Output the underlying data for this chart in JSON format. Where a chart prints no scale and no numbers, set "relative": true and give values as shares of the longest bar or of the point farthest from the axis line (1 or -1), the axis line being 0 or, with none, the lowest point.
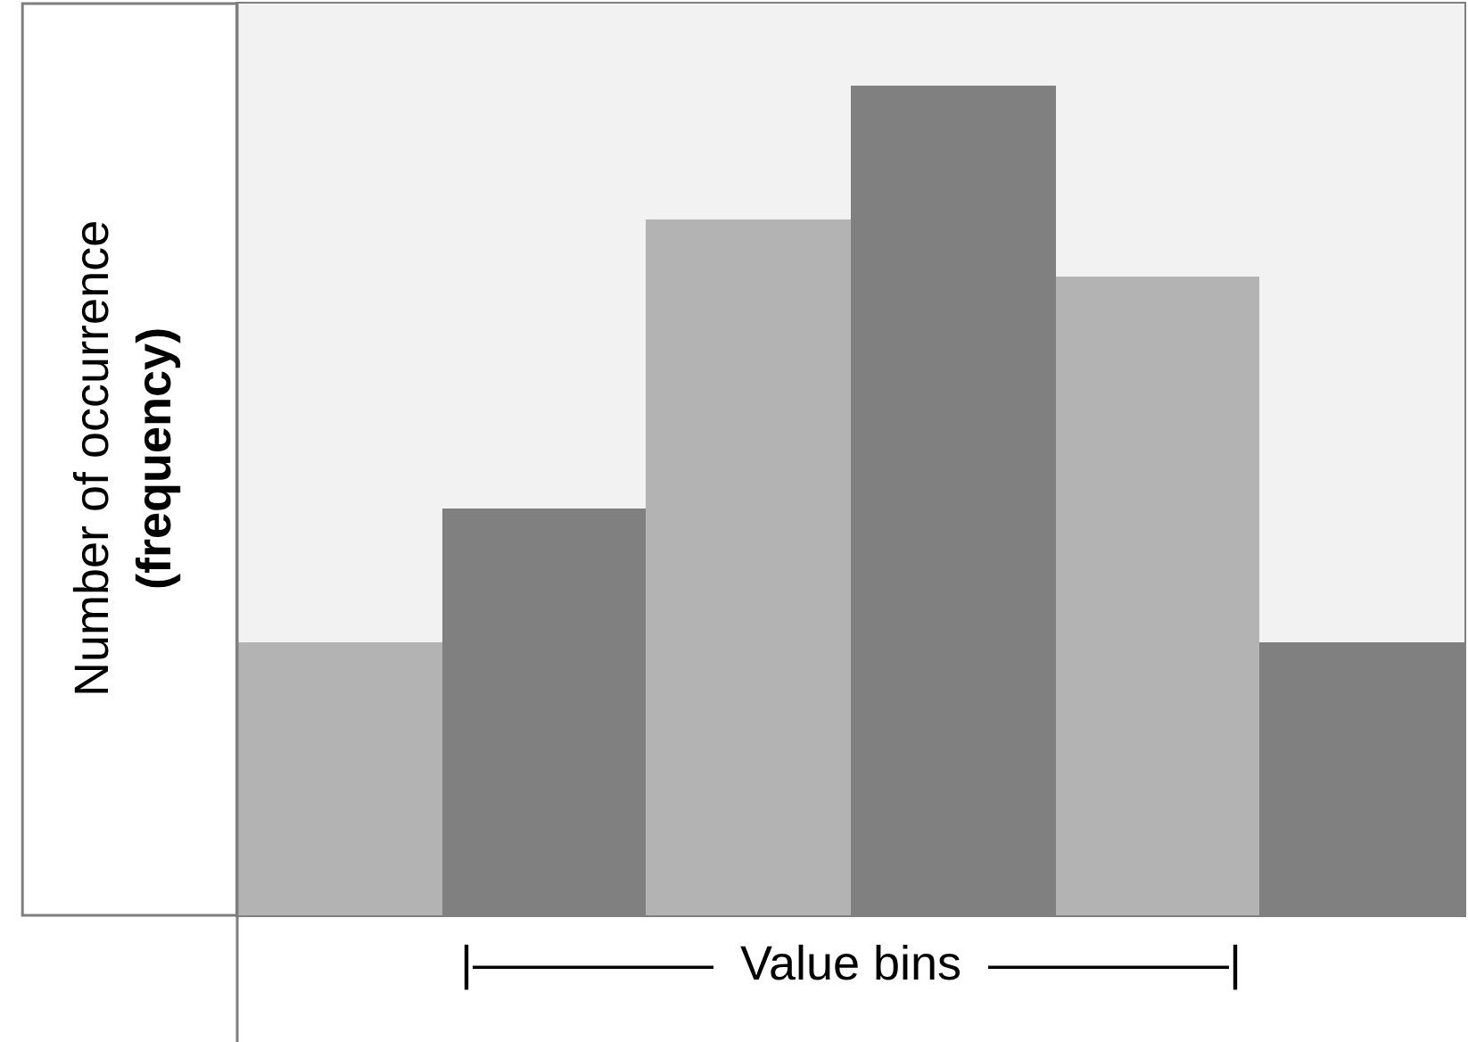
{
  "chart_data": {
    "type": "bar",
    "relative": true,
    "categories": [
      null,
      null,
      null,
      null,
      null,
      null
    ],
    "values": [
      0.33,
      0.49,
      0.84,
      1,
      0.77,
      0.33
    ],
    "colors": [
      "#b3b3b3",
      "#808080",
      "#b3b3b3",
      "#808080",
      "#b3b3b3",
      "#808080"
    ],
    "xlabel": "|—————  Value bins  —————|",
    "ylabel": "Number of occurrence\n(frequency)"
  }
}
